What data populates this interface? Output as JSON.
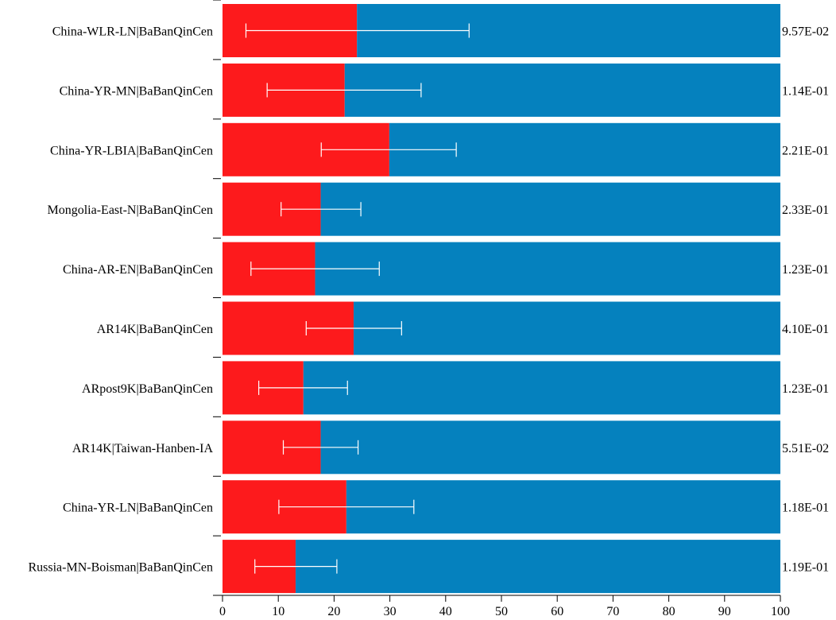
{
  "chart_data": {
    "type": "bar",
    "orientation": "horizontal",
    "stacked": true,
    "categories": [
      "China-WLR-LN|BaBanQinCen",
      "China-YR-MN|BaBanQinCen",
      "China-YR-LBIA|BaBanQinCen",
      "Mongolia-East-N|BaBanQinCen",
      "China-AR-EN|BaBanQinCen",
      "AR14K|BaBanQinCen",
      "ARpost9K|BaBanQinCen",
      "AR14K|Taiwan-Hanben-IA",
      "China-YR-LN|BaBanQinCen",
      "Russia-MN-Boisman|BaBanQinCen"
    ],
    "series": [
      {
        "color": "#fd1a1c",
        "values": [
          24.1,
          21.9,
          29.9,
          17.6,
          16.6,
          23.5,
          14.5,
          17.6,
          22.2,
          13.1
        ]
      },
      {
        "color": "#0581be",
        "values": [
          75.9,
          78.1,
          70.1,
          82.4,
          83.4,
          76.5,
          85.5,
          82.4,
          77.8,
          86.9
        ]
      }
    ],
    "error_bars": [
      {
        "low": 4.2,
        "high": 44.2
      },
      {
        "low": 8.0,
        "high": 35.6
      },
      {
        "low": 17.7,
        "high": 41.9
      },
      {
        "low": 10.5,
        "high": 24.8
      },
      {
        "low": 5.1,
        "high": 28.1
      },
      {
        "low": 15.0,
        "high": 32.1
      },
      {
        "low": 6.5,
        "high": 22.4
      },
      {
        "low": 10.9,
        "high": 24.3
      },
      {
        "low": 10.1,
        "high": 34.3
      },
      {
        "low": 5.8,
        "high": 20.5
      }
    ],
    "p_values": [
      "9.57E-02",
      "1.14E-01",
      "2.21E-01",
      "2.33E-01",
      "1.23E-01",
      "4.10E-01",
      "1.23E-01",
      "5.51E-02",
      "1.18E-01",
      "1.19E-01"
    ],
    "xlim": [
      0,
      100
    ],
    "xticks": [
      0,
      10,
      20,
      30,
      40,
      50,
      60,
      70,
      80,
      90,
      100
    ],
    "grid": false,
    "legend": "none"
  }
}
